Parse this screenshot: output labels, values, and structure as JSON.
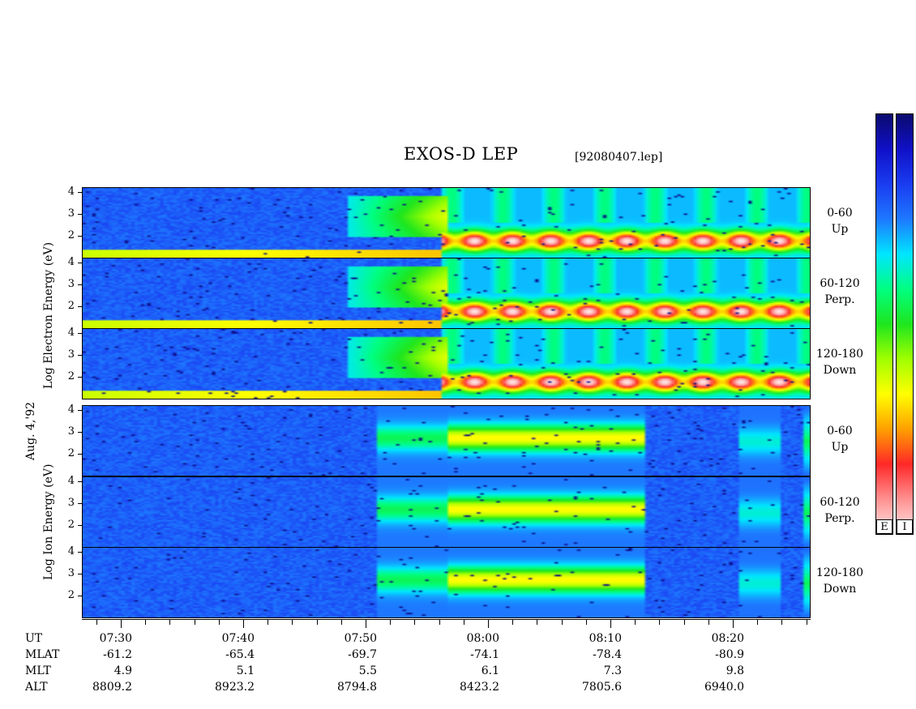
{
  "title": "EXOS-D LEP",
  "file": "[92080407.lep]",
  "date_label": "Aug. 4,'92",
  "electron_label": "Log  Electron  Energy (eV)",
  "ion_label": "Log  Ion  Energy (eV)",
  "colorbar_labels": [
    "E",
    "I"
  ],
  "colors": {
    "background": "#1a3cf0",
    "colormap": [
      "#0a0a6e",
      "#1010c8",
      "#1a3cf0",
      "#1e78ff",
      "#00e6ff",
      "#00ff80",
      "#1ee61e",
      "#a0ff00",
      "#ffff00",
      "#ffa000",
      "#ff2828",
      "#ff9090",
      "#ffe8e8"
    ]
  },
  "chart_data": {
    "type": "heatmap",
    "title": "EXOS-D LEP",
    "xlabel": "UT",
    "ylabel": "Log Energy (eV)",
    "x_ticks": [
      "07:30",
      "07:40",
      "07:50",
      "08:00",
      "08:10",
      "08:20"
    ],
    "y_ticks": [
      "4",
      "3",
      "2"
    ],
    "panels": [
      {
        "species": "Electron",
        "pitch_angle": "0-60",
        "direction": "Up"
      },
      {
        "species": "Electron",
        "pitch_angle": "60-120",
        "direction": "Perp."
      },
      {
        "species": "Electron",
        "pitch_angle": "120-180",
        "direction": "Down"
      },
      {
        "species": "Ion",
        "pitch_angle": "0-60",
        "direction": "Up"
      },
      {
        "species": "Ion",
        "pitch_angle": "60-120",
        "direction": "Perp."
      },
      {
        "species": "Ion",
        "pitch_angle": "120-180",
        "direction": "Down"
      }
    ],
    "orbit_rows": [
      {
        "label": "UT",
        "values": [
          "07:30",
          "07:40",
          "07:50",
          "08:00",
          "08:10",
          "08:20"
        ]
      },
      {
        "label": "MLAT",
        "values": [
          "-61.2",
          "-65.4",
          "-69.7",
          "-74.1",
          "-78.4",
          "-80.9"
        ]
      },
      {
        "label": "MLT",
        "values": [
          "4.9",
          "5.1",
          "5.5",
          "6.1",
          "7.3",
          "9.8"
        ]
      },
      {
        "label": "ALT",
        "values": [
          "8809.2",
          "8923.2",
          "8794.8",
          "8423.2",
          "7805.6",
          "6940.0"
        ]
      }
    ]
  }
}
